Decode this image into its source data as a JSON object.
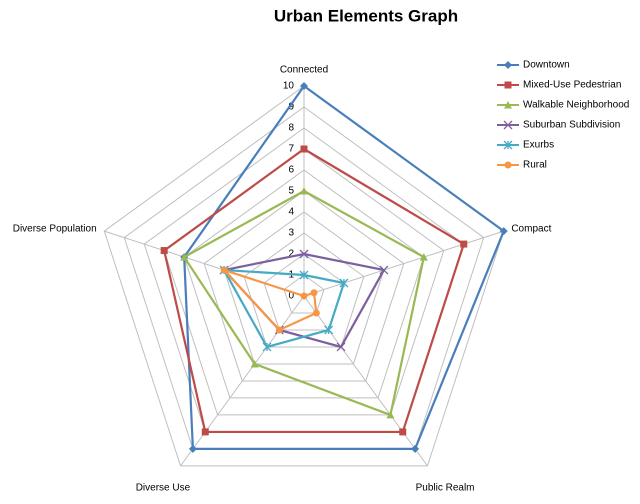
{
  "chart_data": {
    "type": "radar",
    "title": "Urban Elements Graph",
    "categories": [
      "Connected",
      "Compact",
      "Public Realm",
      "Diverse Use",
      "Diverse Population"
    ],
    "rlim": [
      0,
      10
    ],
    "rticks": [
      0,
      1,
      2,
      3,
      4,
      5,
      6,
      7,
      8,
      9,
      10
    ],
    "grid": true,
    "legend": "top-right",
    "series": [
      {
        "name": "Downtown",
        "color": "#4a7ebb",
        "marker": "diamond",
        "values": [
          10,
          10,
          9,
          9,
          6
        ]
      },
      {
        "name": "Mixed-Use Pedestrian",
        "color": "#be4b48",
        "marker": "square",
        "values": [
          7,
          8,
          8,
          8,
          7
        ]
      },
      {
        "name": "Walkable Neighborhood",
        "color": "#98b954",
        "marker": "triangle",
        "values": [
          5,
          6,
          7,
          4,
          6
        ]
      },
      {
        "name": "Suburban Subdivision",
        "color": "#7d60a0",
        "marker": "x",
        "values": [
          2,
          4,
          3,
          2,
          4
        ]
      },
      {
        "name": "Exurbs",
        "color": "#46aac5",
        "marker": "asterisk",
        "values": [
          1,
          2,
          2,
          3,
          4
        ]
      },
      {
        "name": "Rural",
        "color": "#f79646",
        "marker": "circle",
        "values": [
          0,
          0.5,
          1,
          2,
          4
        ]
      }
    ]
  }
}
